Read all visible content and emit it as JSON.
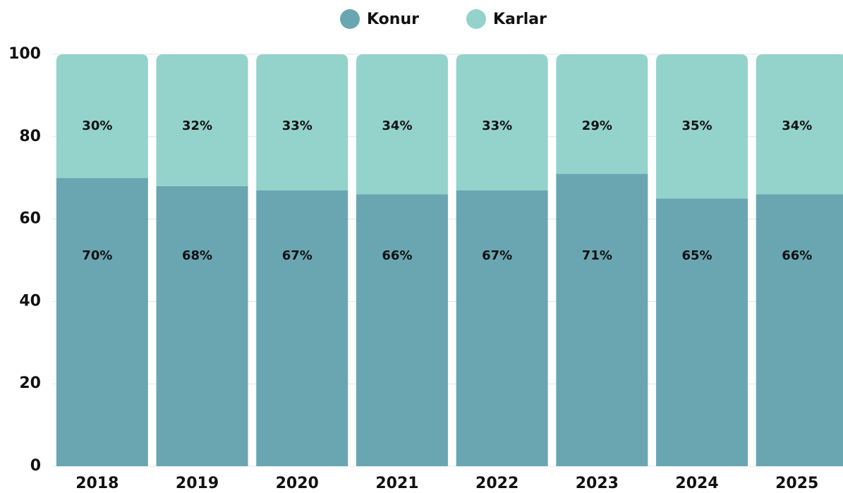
{
  "chart_data": {
    "type": "stacked_bar",
    "categories": [
      "2018",
      "2019",
      "2020",
      "2021",
      "2022",
      "2023",
      "2024",
      "2025"
    ],
    "series": [
      {
        "name": "Konur",
        "color": "#6aa6b2",
        "values": [
          70,
          68,
          67,
          66,
          67,
          71,
          65,
          66
        ],
        "value_labels": [
          "70%",
          "68%",
          "67%",
          "66%",
          "67%",
          "71%",
          "65%",
          "66%"
        ]
      },
      {
        "name": "Karlar",
        "color": "#94d2cc",
        "values": [
          30,
          32,
          33,
          34,
          33,
          29,
          35,
          34
        ],
        "value_labels": [
          "30%",
          "32%",
          "33%",
          "34%",
          "33%",
          "29%",
          "35%",
          "34%"
        ]
      }
    ],
    "ylim": [
      0,
      100
    ],
    "yticks": [
      0,
      20,
      40,
      60,
      80,
      100
    ],
    "grid": true,
    "legend": "top"
  }
}
